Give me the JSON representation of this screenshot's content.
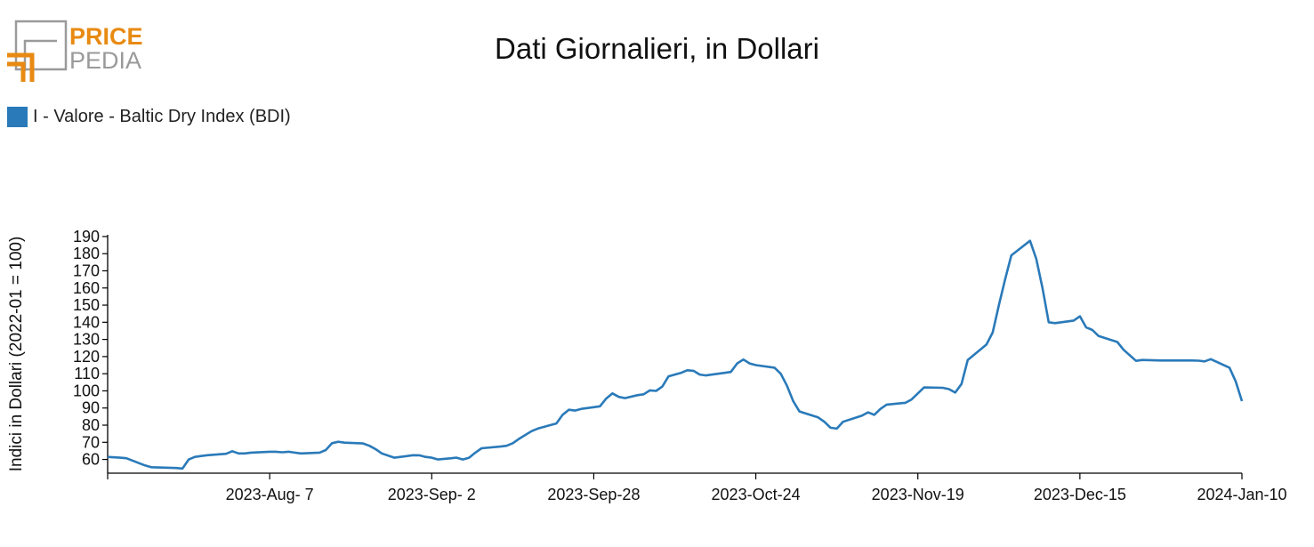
{
  "logo": {
    "text_top": "PRICE",
    "text_bottom": "PEDIA",
    "orange": "#e88a12",
    "gray": "#9a9a9a"
  },
  "header": {
    "title": "Dati Giornalieri, in Dollari"
  },
  "colors": {
    "series": "#2a7ab9",
    "axis": "#000000"
  },
  "chart_data": {
    "type": "line",
    "title": "Dati Giornalieri, in Dollari",
    "ylabel": "Indici in Dollari (2022-01 = 100)",
    "xlabel": "",
    "ylim": [
      52,
      191
    ],
    "yticks": [
      60,
      70,
      80,
      90,
      100,
      110,
      120,
      130,
      140,
      150,
      160,
      170,
      180,
      190
    ],
    "x_range": [
      "2023-07-12",
      "2024-01-10"
    ],
    "x_ticks": [
      {
        "date": "2023-08-07",
        "label": "2023-Aug- 7"
      },
      {
        "date": "2023-09-02",
        "label": "2023-Sep- 2"
      },
      {
        "date": "2023-09-28",
        "label": "2023-Sep-28"
      },
      {
        "date": "2023-10-24",
        "label": "2023-Oct-24"
      },
      {
        "date": "2023-11-19",
        "label": "2023-Nov-19"
      },
      {
        "date": "2023-12-15",
        "label": "2023-Dec-15"
      },
      {
        "date": "2024-01-10",
        "label": "2024-Jan-10"
      }
    ],
    "legend": "top-left",
    "grid": false,
    "series": [
      {
        "name": "I - Valore - Baltic Dry Index (BDI)",
        "points": [
          [
            "2023-07-12",
            61.5
          ],
          [
            "2023-07-14",
            61.0
          ],
          [
            "2023-07-15",
            60.7
          ],
          [
            "2023-07-18",
            56.5
          ],
          [
            "2023-07-19",
            55.5
          ],
          [
            "2023-07-23",
            55.0
          ],
          [
            "2023-07-24",
            54.7
          ],
          [
            "2023-07-25",
            60.0
          ],
          [
            "2023-07-26",
            61.5
          ],
          [
            "2023-07-27",
            62.0
          ],
          [
            "2023-07-28",
            62.5
          ],
          [
            "2023-07-31",
            63.3
          ],
          [
            "2023-08-01",
            64.8
          ],
          [
            "2023-08-02",
            63.5
          ],
          [
            "2023-08-03",
            63.5
          ],
          [
            "2023-08-04",
            64.0
          ],
          [
            "2023-08-07",
            64.5
          ],
          [
            "2023-08-08",
            64.5
          ],
          [
            "2023-08-09",
            64.2
          ],
          [
            "2023-08-10",
            64.5
          ],
          [
            "2023-08-11",
            64.0
          ],
          [
            "2023-08-12",
            63.5
          ],
          [
            "2023-08-15",
            64.0
          ],
          [
            "2023-08-16",
            65.5
          ],
          [
            "2023-08-17",
            69.5
          ],
          [
            "2023-08-18",
            70.3
          ],
          [
            "2023-08-19",
            69.8
          ],
          [
            "2023-08-22",
            69.3
          ],
          [
            "2023-08-23",
            68.0
          ],
          [
            "2023-08-24",
            66.0
          ],
          [
            "2023-08-25",
            63.5
          ],
          [
            "2023-08-27",
            61.0
          ],
          [
            "2023-08-28",
            61.5
          ],
          [
            "2023-08-30",
            62.5
          ],
          [
            "2023-08-31",
            62.4
          ],
          [
            "2023-09-01",
            61.5
          ],
          [
            "2023-09-02",
            61.0
          ],
          [
            "2023-09-03",
            60.0
          ],
          [
            "2023-09-06",
            61.0
          ],
          [
            "2023-09-07",
            60.0
          ],
          [
            "2023-09-08",
            61.0
          ],
          [
            "2023-09-09",
            64.0
          ],
          [
            "2023-09-10",
            66.5
          ],
          [
            "2023-09-13",
            67.5
          ],
          [
            "2023-09-14",
            68.0
          ],
          [
            "2023-09-15",
            69.5
          ],
          [
            "2023-09-16",
            72.0
          ],
          [
            "2023-09-18",
            76.5
          ],
          [
            "2023-09-19",
            78.0
          ],
          [
            "2023-09-21",
            80.0
          ],
          [
            "2023-09-22",
            81.0
          ],
          [
            "2023-09-23",
            86.0
          ],
          [
            "2023-09-24",
            89.0
          ],
          [
            "2023-09-25",
            88.5
          ],
          [
            "2023-09-26",
            89.5
          ],
          [
            "2023-09-28",
            90.5
          ],
          [
            "2023-09-29",
            91.0
          ],
          [
            "2023-09-30",
            95.5
          ],
          [
            "2023-10-01",
            98.5
          ],
          [
            "2023-10-02",
            96.5
          ],
          [
            "2023-10-03",
            95.8
          ],
          [
            "2023-10-05",
            97.5
          ],
          [
            "2023-10-06",
            98.0
          ],
          [
            "2023-10-07",
            100.3
          ],
          [
            "2023-10-08",
            100.0
          ],
          [
            "2023-10-09",
            102.5
          ],
          [
            "2023-10-10",
            108.5
          ],
          [
            "2023-10-12",
            110.5
          ],
          [
            "2023-10-13",
            112.0
          ],
          [
            "2023-10-14",
            111.7
          ],
          [
            "2023-10-15",
            109.5
          ],
          [
            "2023-10-16",
            109.0
          ],
          [
            "2023-10-19",
            110.5
          ],
          [
            "2023-10-20",
            111.0
          ],
          [
            "2023-10-21",
            116.0
          ],
          [
            "2023-10-22",
            118.3
          ],
          [
            "2023-10-23",
            116.0
          ],
          [
            "2023-10-24",
            115.0
          ],
          [
            "2023-10-27",
            113.5
          ],
          [
            "2023-10-28",
            110.0
          ],
          [
            "2023-10-29",
            103.0
          ],
          [
            "2023-10-30",
            94.0
          ],
          [
            "2023-10-31",
            88.0
          ],
          [
            "2023-11-03",
            84.5
          ],
          [
            "2023-11-04",
            82.0
          ],
          [
            "2023-11-05",
            78.5
          ],
          [
            "2023-11-06",
            78.0
          ],
          [
            "2023-11-07",
            82.0
          ],
          [
            "2023-11-10",
            85.5
          ],
          [
            "2023-11-11",
            87.5
          ],
          [
            "2023-11-12",
            86.0
          ],
          [
            "2023-11-13",
            89.5
          ],
          [
            "2023-11-14",
            92.0
          ],
          [
            "2023-11-17",
            93.0
          ],
          [
            "2023-11-18",
            95.0
          ],
          [
            "2023-11-19",
            98.5
          ],
          [
            "2023-11-20",
            102.0
          ],
          [
            "2023-11-23",
            101.8
          ],
          [
            "2023-11-24",
            101.0
          ],
          [
            "2023-11-25",
            99.0
          ],
          [
            "2023-11-26",
            104.0
          ],
          [
            "2023-11-27",
            118.0
          ],
          [
            "2023-11-30",
            127.0
          ],
          [
            "2023-12-01",
            134.0
          ],
          [
            "2023-12-02",
            150.0
          ],
          [
            "2023-12-03",
            165.0
          ],
          [
            "2023-12-04",
            179.0
          ],
          [
            "2023-12-07",
            187.5
          ],
          [
            "2023-12-08",
            177.0
          ],
          [
            "2023-12-09",
            160.0
          ],
          [
            "2023-12-10",
            140.0
          ],
          [
            "2023-12-11",
            139.5
          ],
          [
            "2023-12-14",
            141.0
          ],
          [
            "2023-12-15",
            143.5
          ],
          [
            "2023-12-16",
            137.0
          ],
          [
            "2023-12-17",
            135.5
          ],
          [
            "2023-12-18",
            132.0
          ],
          [
            "2023-12-21",
            128.5
          ],
          [
            "2023-12-22",
            124.0
          ],
          [
            "2023-12-24",
            117.5
          ],
          [
            "2023-12-25",
            118.0
          ],
          [
            "2023-12-28",
            117.7
          ],
          [
            "2024-01-02",
            117.7
          ],
          [
            "2024-01-03",
            117.6
          ],
          [
            "2024-01-04",
            117.2
          ],
          [
            "2024-01-05",
            118.5
          ],
          [
            "2024-01-08",
            113.5
          ],
          [
            "2024-01-09",
            105.5
          ],
          [
            "2024-01-10",
            94.0
          ]
        ]
      }
    ]
  }
}
